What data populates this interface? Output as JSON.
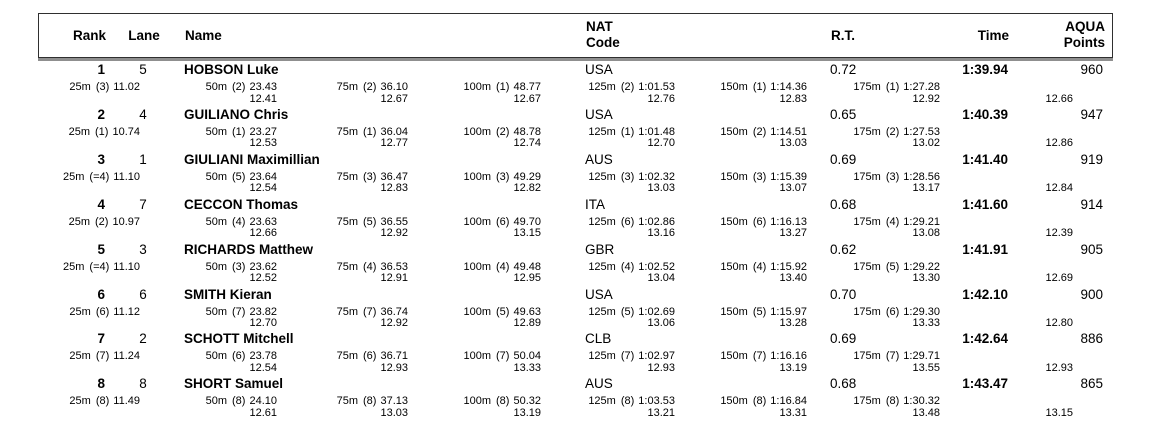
{
  "header": {
    "rank": "Rank",
    "lane": "Lane",
    "name": "Name",
    "nat1": "NAT",
    "nat2": "Code",
    "rt": "R.T.",
    "time": "Time",
    "aqua1": "AQUA",
    "aqua2": "Points"
  },
  "rows": [
    {
      "rank": "1",
      "lane": "5",
      "name": "HOBSON Luke",
      "nat": "USA",
      "rt": "0.72",
      "time": "1:39.94",
      "points": "960",
      "splits": [
        {
          "d": "25m",
          "p": "(3)",
          "t": "11.02",
          "diff": ""
        },
        {
          "d": "50m",
          "p": "(2)",
          "t": "23.43",
          "diff": "12.41"
        },
        {
          "d": "75m",
          "p": "(2)",
          "t": "36.10",
          "diff": "12.67"
        },
        {
          "d": "100m",
          "p": "(1)",
          "t": "48.77",
          "diff": "12.67"
        },
        {
          "d": "125m",
          "p": "(2)",
          "t": "1:01.53",
          "diff": "12.76"
        },
        {
          "d": "150m",
          "p": "(1)",
          "t": "1:14.36",
          "diff": "12.83"
        },
        {
          "d": "175m",
          "p": "(1)",
          "t": "1:27.28",
          "diff": "12.92"
        }
      ],
      "final_diff": "12.66"
    },
    {
      "rank": "2",
      "lane": "4",
      "name": "GUILIANO Chris",
      "nat": "USA",
      "rt": "0.65",
      "time": "1:40.39",
      "points": "947",
      "splits": [
        {
          "d": "25m",
          "p": "(1)",
          "t": "10.74",
          "diff": ""
        },
        {
          "d": "50m",
          "p": "(1)",
          "t": "23.27",
          "diff": "12.53"
        },
        {
          "d": "75m",
          "p": "(1)",
          "t": "36.04",
          "diff": "12.77"
        },
        {
          "d": "100m",
          "p": "(2)",
          "t": "48.78",
          "diff": "12.74"
        },
        {
          "d": "125m",
          "p": "(1)",
          "t": "1:01.48",
          "diff": "12.70"
        },
        {
          "d": "150m",
          "p": "(2)",
          "t": "1:14.51",
          "diff": "13.03"
        },
        {
          "d": "175m",
          "p": "(2)",
          "t": "1:27.53",
          "diff": "13.02"
        }
      ],
      "final_diff": "12.86"
    },
    {
      "rank": "3",
      "lane": "1",
      "name": "GIULIANI Maximillian",
      "nat": "AUS",
      "rt": "0.69",
      "time": "1:41.40",
      "points": "919",
      "splits": [
        {
          "d": "25m",
          "p": "(=4)",
          "t": "11.10",
          "diff": ""
        },
        {
          "d": "50m",
          "p": "(5)",
          "t": "23.64",
          "diff": "12.54"
        },
        {
          "d": "75m",
          "p": "(3)",
          "t": "36.47",
          "diff": "12.83"
        },
        {
          "d": "100m",
          "p": "(3)",
          "t": "49.29",
          "diff": "12.82"
        },
        {
          "d": "125m",
          "p": "(3)",
          "t": "1:02.32",
          "diff": "13.03"
        },
        {
          "d": "150m",
          "p": "(3)",
          "t": "1:15.39",
          "diff": "13.07"
        },
        {
          "d": "175m",
          "p": "(3)",
          "t": "1:28.56",
          "diff": "13.17"
        }
      ],
      "final_diff": "12.84"
    },
    {
      "rank": "4",
      "lane": "7",
      "name": "CECCON Thomas",
      "nat": "ITA",
      "rt": "0.68",
      "time": "1:41.60",
      "points": "914",
      "splits": [
        {
          "d": "25m",
          "p": "(2)",
          "t": "10.97",
          "diff": ""
        },
        {
          "d": "50m",
          "p": "(4)",
          "t": "23.63",
          "diff": "12.66"
        },
        {
          "d": "75m",
          "p": "(5)",
          "t": "36.55",
          "diff": "12.92"
        },
        {
          "d": "100m",
          "p": "(6)",
          "t": "49.70",
          "diff": "13.15"
        },
        {
          "d": "125m",
          "p": "(6)",
          "t": "1:02.86",
          "diff": "13.16"
        },
        {
          "d": "150m",
          "p": "(6)",
          "t": "1:16.13",
          "diff": "13.27"
        },
        {
          "d": "175m",
          "p": "(4)",
          "t": "1:29.21",
          "diff": "13.08"
        }
      ],
      "final_diff": "12.39"
    },
    {
      "rank": "5",
      "lane": "3",
      "name": "RICHARDS Matthew",
      "nat": "GBR",
      "rt": "0.62",
      "time": "1:41.91",
      "points": "905",
      "splits": [
        {
          "d": "25m",
          "p": "(=4)",
          "t": "11.10",
          "diff": ""
        },
        {
          "d": "50m",
          "p": "(3)",
          "t": "23.62",
          "diff": "12.52"
        },
        {
          "d": "75m",
          "p": "(4)",
          "t": "36.53",
          "diff": "12.91"
        },
        {
          "d": "100m",
          "p": "(4)",
          "t": "49.48",
          "diff": "12.95"
        },
        {
          "d": "125m",
          "p": "(4)",
          "t": "1:02.52",
          "diff": "13.04"
        },
        {
          "d": "150m",
          "p": "(4)",
          "t": "1:15.92",
          "diff": "13.40"
        },
        {
          "d": "175m",
          "p": "(5)",
          "t": "1:29.22",
          "diff": "13.30"
        }
      ],
      "final_diff": "12.69"
    },
    {
      "rank": "6",
      "lane": "6",
      "name": "SMITH Kieran",
      "nat": "USA",
      "rt": "0.70",
      "time": "1:42.10",
      "points": "900",
      "splits": [
        {
          "d": "25m",
          "p": "(6)",
          "t": "11.12",
          "diff": ""
        },
        {
          "d": "50m",
          "p": "(7)",
          "t": "23.82",
          "diff": "12.70"
        },
        {
          "d": "75m",
          "p": "(7)",
          "t": "36.74",
          "diff": "12.92"
        },
        {
          "d": "100m",
          "p": "(5)",
          "t": "49.63",
          "diff": "12.89"
        },
        {
          "d": "125m",
          "p": "(5)",
          "t": "1:02.69",
          "diff": "13.06"
        },
        {
          "d": "150m",
          "p": "(5)",
          "t": "1:15.97",
          "diff": "13.28"
        },
        {
          "d": "175m",
          "p": "(6)",
          "t": "1:29.30",
          "diff": "13.33"
        }
      ],
      "final_diff": "12.80"
    },
    {
      "rank": "7",
      "lane": "2",
      "name": "SCHOTT Mitchell",
      "nat": "CLB",
      "rt": "0.69",
      "time": "1:42.64",
      "points": "886",
      "splits": [
        {
          "d": "25m",
          "p": "(7)",
          "t": "11.24",
          "diff": ""
        },
        {
          "d": "50m",
          "p": "(6)",
          "t": "23.78",
          "diff": "12.54"
        },
        {
          "d": "75m",
          "p": "(6)",
          "t": "36.71",
          "diff": "12.93"
        },
        {
          "d": "100m",
          "p": "(7)",
          "t": "50.04",
          "diff": "13.33"
        },
        {
          "d": "125m",
          "p": "(7)",
          "t": "1:02.97",
          "diff": "12.93"
        },
        {
          "d": "150m",
          "p": "(7)",
          "t": "1:16.16",
          "diff": "13.19"
        },
        {
          "d": "175m",
          "p": "(7)",
          "t": "1:29.71",
          "diff": "13.55"
        }
      ],
      "final_diff": "12.93"
    },
    {
      "rank": "8",
      "lane": "8",
      "name": "SHORT Samuel",
      "nat": "AUS",
      "rt": "0.68",
      "time": "1:43.47",
      "points": "865",
      "splits": [
        {
          "d": "25m",
          "p": "(8)",
          "t": "11.49",
          "diff": ""
        },
        {
          "d": "50m",
          "p": "(8)",
          "t": "24.10",
          "diff": "12.61"
        },
        {
          "d": "75m",
          "p": "(8)",
          "t": "37.13",
          "diff": "13.03"
        },
        {
          "d": "100m",
          "p": "(8)",
          "t": "50.32",
          "diff": "13.19"
        },
        {
          "d": "125m",
          "p": "(8)",
          "t": "1:03.53",
          "diff": "13.21"
        },
        {
          "d": "150m",
          "p": "(8)",
          "t": "1:16.84",
          "diff": "13.31"
        },
        {
          "d": "175m",
          "p": "(8)",
          "t": "1:30.32",
          "diff": "13.48"
        }
      ],
      "final_diff": "13.15"
    }
  ]
}
